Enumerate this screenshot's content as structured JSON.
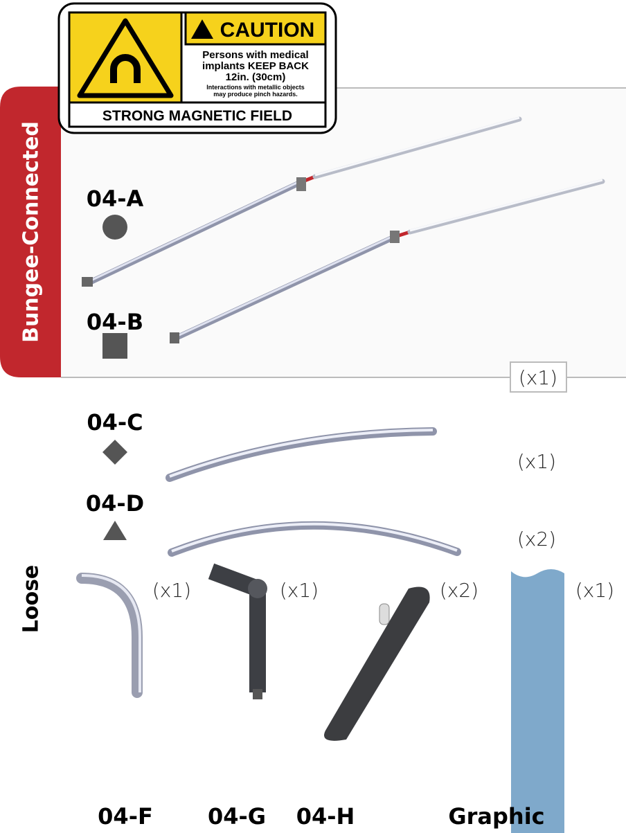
{
  "caution": {
    "heading": "CAUTION",
    "lines": [
      "Persons with medical",
      "implants KEEP BACK",
      "12in. (30cm)"
    ],
    "note": [
      "Interactions with metallic objects",
      "may produce pinch hazards."
    ],
    "footer": "STRONG MAGNETIC FIELD"
  },
  "sections": {
    "bungee": "Bungee-Connected",
    "loose": "Loose"
  },
  "bungee_quantity": "(x1)",
  "parts": [
    {
      "label": "04-A"
    },
    {
      "label": "04-B"
    },
    {
      "label": "04-C",
      "quantity": "(x1)"
    },
    {
      "label": "04-D",
      "quantity": "(x2)"
    },
    {
      "label": "04-F",
      "quantity": "(x1)"
    },
    {
      "label": "04-G",
      "quantity": "(x1)"
    },
    {
      "label": "04-H",
      "quantity": "(x2)"
    },
    {
      "label": "Graphic",
      "quantity": "(x1)"
    }
  ]
}
